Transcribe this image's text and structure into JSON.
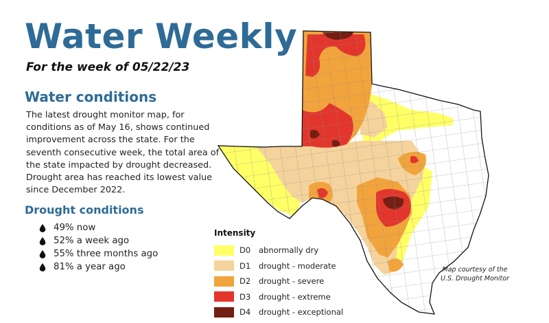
{
  "header": {
    "title": "Water Weekly",
    "subtitle": "For the week of 05/22/23"
  },
  "conditions": {
    "heading": "Water conditions",
    "body": "The latest drought monitor map, for conditions as of May 16, shows continued improvement across the state. For the seventh consecutive week, the total area of the state impacted by drought decreased. Drought area has reached its lowest value since December 2022."
  },
  "drought": {
    "heading": "Drought conditions",
    "items": [
      {
        "text": "49% now",
        "percent": 49
      },
      {
        "text": "52% a week ago",
        "percent": 52
      },
      {
        "text": "55% three months ago",
        "percent": 55
      },
      {
        "text": "81% a year ago",
        "percent": 81
      }
    ],
    "bullet_icon": "water-drop-icon"
  },
  "map": {
    "region": "Texas",
    "legend": {
      "title": "Intensity",
      "items": [
        {
          "code": "D0",
          "label": "abnormally dry",
          "color": "#ffff66"
        },
        {
          "code": "D1",
          "label": "drought - moderate",
          "color": "#f5d39c"
        },
        {
          "code": "D2",
          "label": "drought - severe",
          "color": "#f2a43c"
        },
        {
          "code": "D3",
          "label": "drought - extreme",
          "color": "#e2362c"
        },
        {
          "code": "D4",
          "label": "drought - exceptional",
          "color": "#731f14"
        }
      ]
    },
    "credit": "Map courtesy of the U.S. Drought Monitor"
  },
  "colors": {
    "heading_blue": "#2e6b96",
    "county_lines": "#8a8a8a",
    "state_outline": "#111111"
  }
}
